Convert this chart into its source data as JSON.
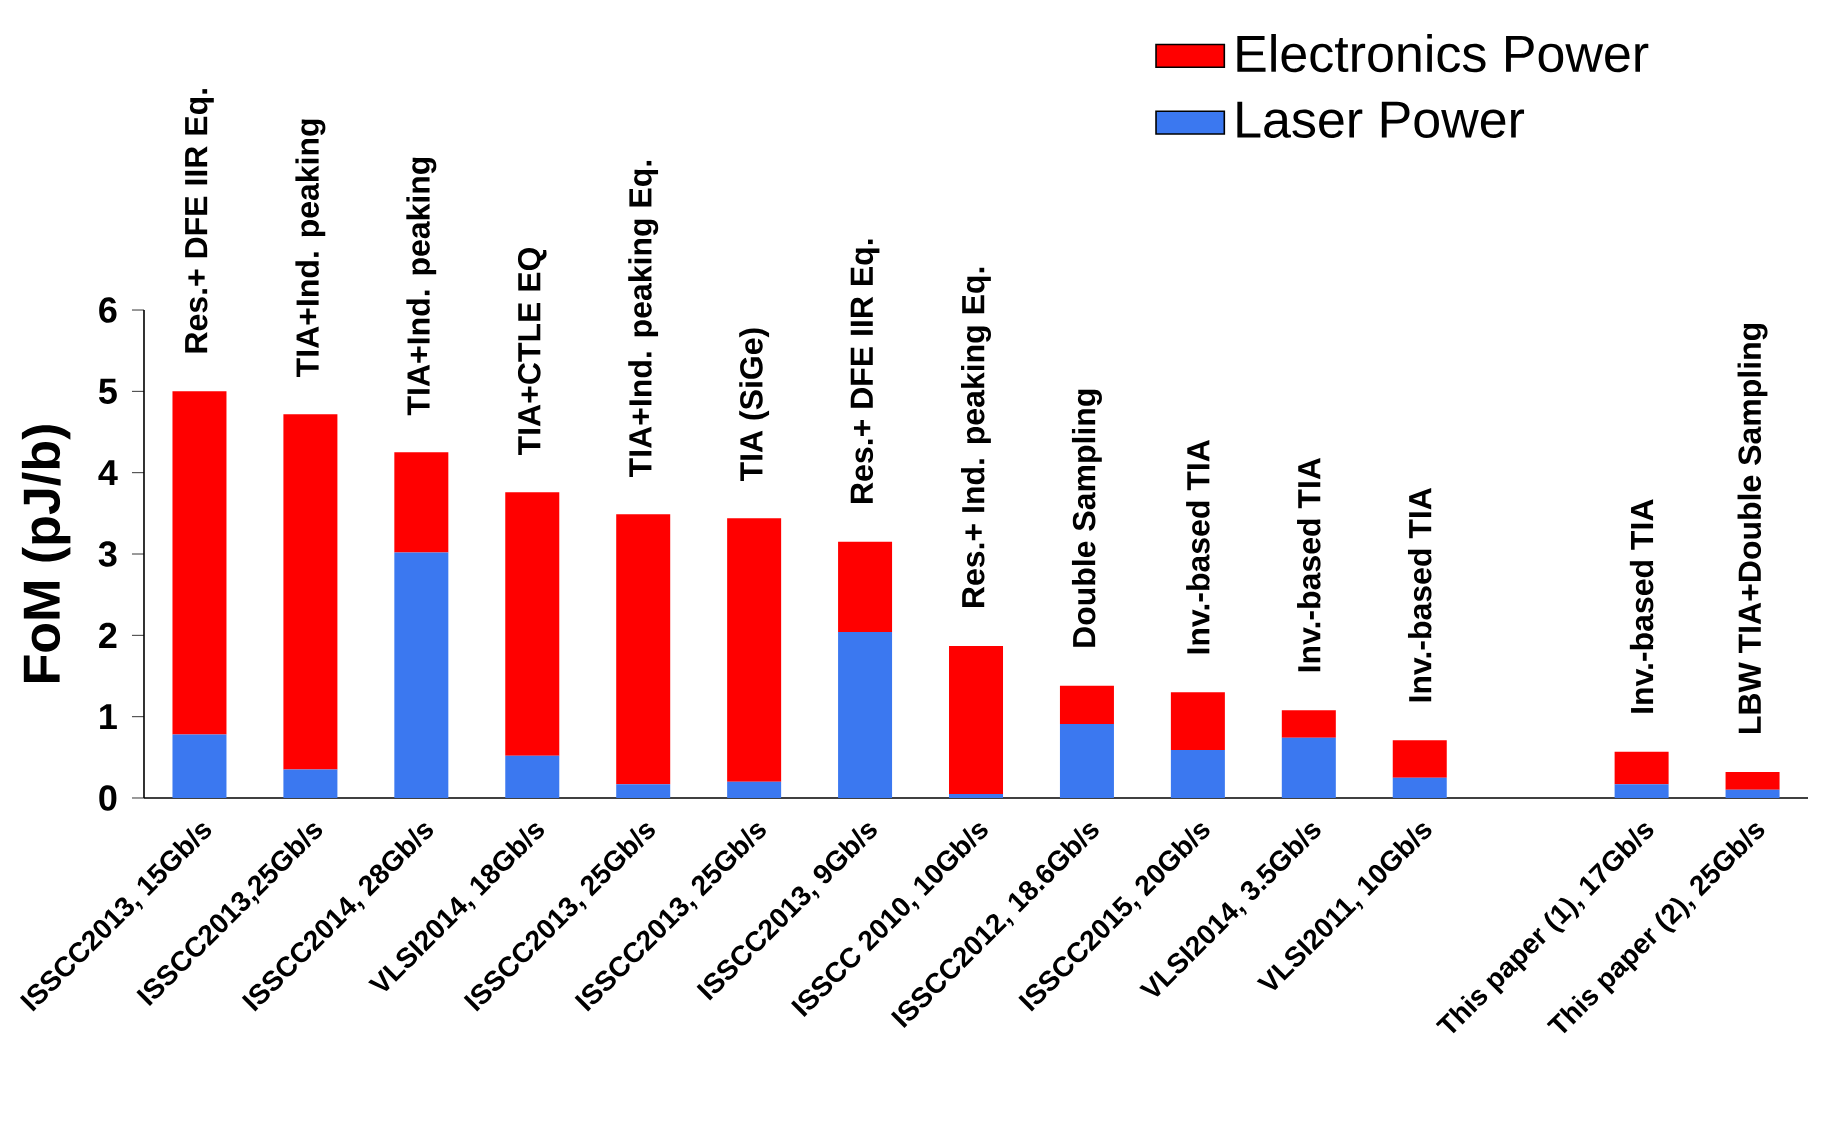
{
  "chart_data": {
    "type": "bar",
    "stacked": true,
    "ylabel": "FoM (pJ/b)",
    "ylim": [
      0,
      6
    ],
    "yticks": [
      0,
      1,
      2,
      3,
      4,
      5,
      6
    ],
    "grid": false,
    "legend": "top right",
    "categories": [
      "ISSCC2013, 15Gb/s",
      "ISSCC2013,25Gb/s",
      "ISSCC2014, 28Gb/s",
      "VLSI2014, 18Gb/s",
      "ISSCC2013, 25Gb/s",
      "ISSCC2013, 25Gb/s",
      "ISSCC2013, 9Gb/s",
      "ISSCC 2010, 10Gb/s",
      "ISSCC2012, 18.6Gb/s",
      "ISSCC2015, 20Gb/s",
      "VLSI2014, 3.5Gb/s",
      "VLSI2011, 10Gb/s",
      null,
      "This paper (1), 17Gb/s",
      "This paper (2), 25Gb/s"
    ],
    "series": [
      {
        "name": "Laser Power",
        "color": "#3b78f0",
        "values": [
          0.78,
          0.35,
          3.02,
          0.52,
          0.17,
          0.2,
          2.04,
          0.05,
          0.91,
          0.59,
          0.74,
          0.25,
          null,
          0.17,
          0.1
        ]
      },
      {
        "name": "Electronics Power",
        "color": "#ff0000",
        "values": [
          4.22,
          4.37,
          1.23,
          3.24,
          3.32,
          3.24,
          1.11,
          1.82,
          0.47,
          0.71,
          0.34,
          0.46,
          null,
          0.4,
          0.22
        ]
      }
    ],
    "annotations": [
      "Res.+ DFE IIR Eq.",
      "TIA+Ind. peaking",
      "TIA+Ind. peaking",
      "TIA+CTLE EQ",
      "TIA+Ind. peaking Eq.",
      "TIA (SiGe)",
      "Res.+ DFE IIR Eq.",
      "Res.+ Ind. peaking Eq.",
      "Double Sampling",
      "Inv.-based  TIA",
      "Inv.-based  TIA",
      "Inv.-based  TIA",
      "Inv.-based  TIA",
      "LBW TIA+Double Sampling"
    ]
  }
}
